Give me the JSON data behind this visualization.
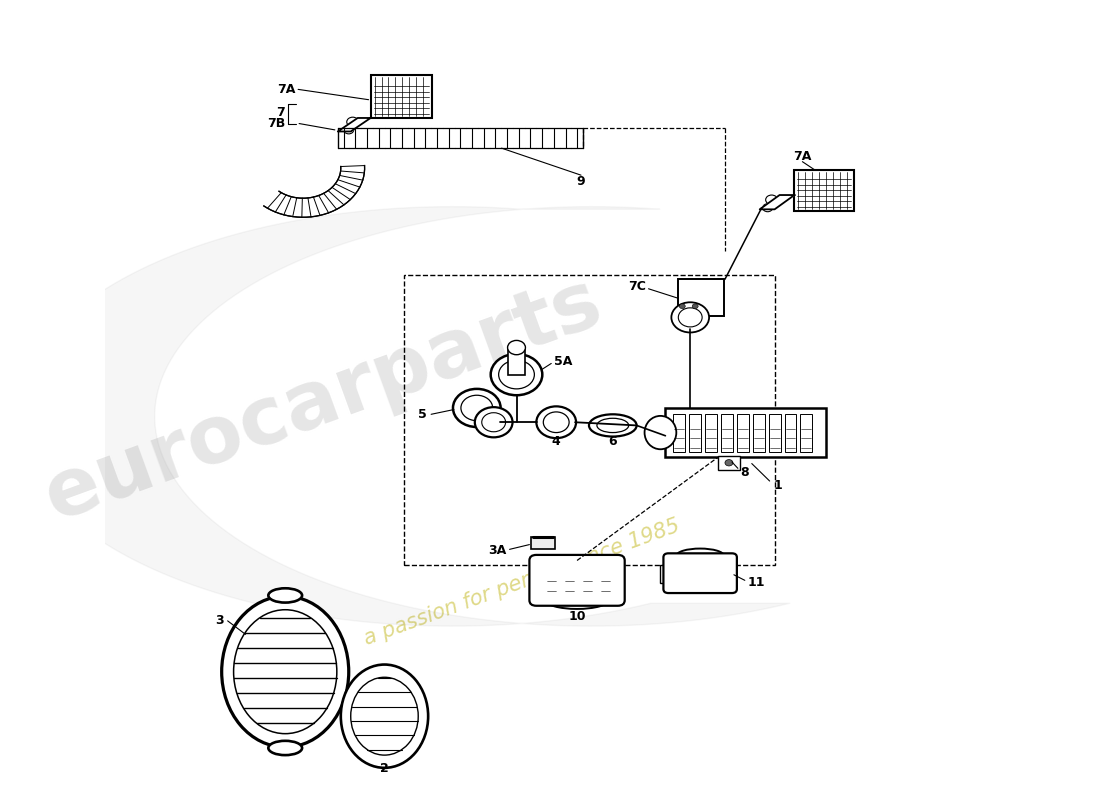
{
  "bg": "#ffffff",
  "lc": "#111111",
  "watermark1": "eurocarparts",
  "watermark2": "a passion for performance 1985",
  "wm1_color": "#c8c8c8",
  "wm2_color": "#d4cc60",
  "labels": {
    "7A_tl": "7A",
    "7_tl": "7",
    "7B_tl": "7B",
    "9": "9",
    "7A_tr": "7A",
    "7C": "7C",
    "5A": "5A",
    "5": "5",
    "4": "4",
    "6": "6",
    "8": "8",
    "1": "1",
    "3A": "3A",
    "3": "3",
    "2": "2",
    "10": "10",
    "11": "11"
  }
}
